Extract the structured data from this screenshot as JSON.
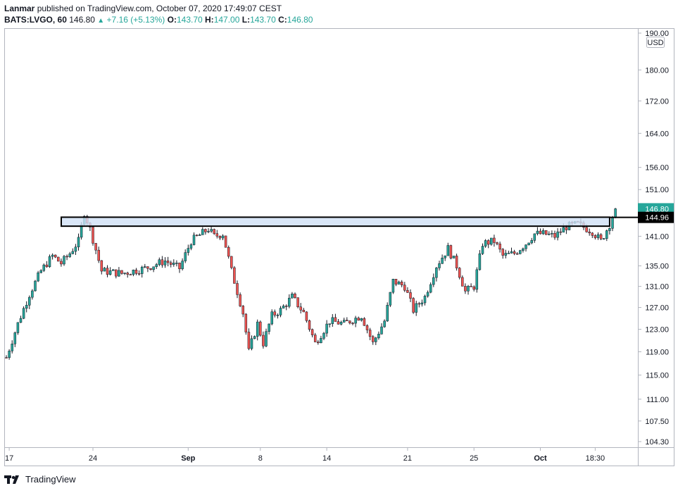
{
  "header": {
    "author": "Lanmar",
    "published_text": "published on TradingView.com, October 07, 2020 17:49:07 CEST",
    "symbol": "BATS:LVGO, 60",
    "last": "146.80",
    "change": "+7.16 (+5.13%)",
    "o_label": "O:",
    "o_value": "143.70",
    "h_label": "H:",
    "h_value": "147.00",
    "l_label": "L:",
    "l_value": "143.70",
    "c_label": "C:",
    "c_value": "146.80"
  },
  "currency": "USD",
  "footer": {
    "brand": "TradingView"
  },
  "colors": {
    "up": "#26a69a",
    "down": "#ef5350",
    "zone_fill": "#cfe0f5",
    "label_green": "#26a69a",
    "label_dark": "#000000"
  },
  "chart_data": {
    "type": "candlestick",
    "y_ticks": [
      "190.00",
      "180.00",
      "172.00",
      "164.00",
      "156.00",
      "151.00",
      "141.00",
      "135.00",
      "131.00",
      "127.00",
      "123.00",
      "119.00",
      "115.00",
      "111.00",
      "107.50",
      "104.30"
    ],
    "y_tick_values": [
      190.0,
      180.0,
      172.0,
      164.0,
      156.0,
      151.0,
      141.0,
      135.0,
      131.0,
      127.0,
      123.0,
      119.0,
      115.0,
      111.0,
      107.5,
      104.3
    ],
    "y_scale": "log",
    "ylim": [
      103.5,
      191.0
    ],
    "x_ticks": [
      "17",
      "24",
      "Sep",
      "8",
      "14",
      "21",
      "25",
      "Oct",
      "18:30"
    ],
    "x_tick_index": [
      1,
      30,
      63,
      88,
      111,
      139,
      162,
      185,
      204
    ],
    "bar_count": 212,
    "price_labels": [
      {
        "text": "146.80",
        "value": 146.8,
        "style": "green"
      },
      {
        "text": "144.96",
        "value": 144.96,
        "style": "dark"
      }
    ],
    "resistance_zone": {
      "top": 145.0,
      "bottom": 143.1,
      "start_index": 20,
      "end_index": 209
    },
    "key_points": [
      {
        "i": 0,
        "price": 118.0
      },
      {
        "i": 4,
        "price": 124.0
      },
      {
        "i": 8,
        "price": 129.5
      },
      {
        "i": 12,
        "price": 134.0
      },
      {
        "i": 16,
        "price": 137.0
      },
      {
        "i": 19,
        "price": 135.5
      },
      {
        "i": 22,
        "price": 137.5
      },
      {
        "i": 25,
        "price": 140.0
      },
      {
        "i": 27,
        "price": 146.0
      },
      {
        "i": 29,
        "price": 142.5
      },
      {
        "i": 33,
        "price": 134.0
      },
      {
        "i": 40,
        "price": 133.5
      },
      {
        "i": 48,
        "price": 134.5
      },
      {
        "i": 55,
        "price": 136.0
      },
      {
        "i": 60,
        "price": 134.5
      },
      {
        "i": 64,
        "price": 140.0
      },
      {
        "i": 70,
        "price": 142.5
      },
      {
        "i": 72,
        "price": 141.0
      },
      {
        "i": 75,
        "price": 141.5
      },
      {
        "i": 78,
        "price": 134.0
      },
      {
        "i": 82,
        "price": 126.0
      },
      {
        "i": 84,
        "price": 119.0
      },
      {
        "i": 87,
        "price": 124.0
      },
      {
        "i": 89,
        "price": 120.5
      },
      {
        "i": 92,
        "price": 125.5
      },
      {
        "i": 95,
        "price": 126.5
      },
      {
        "i": 99,
        "price": 129.0
      },
      {
        "i": 103,
        "price": 126.0
      },
      {
        "i": 107,
        "price": 120.5
      },
      {
        "i": 112,
        "price": 124.5
      },
      {
        "i": 117,
        "price": 124.0
      },
      {
        "i": 123,
        "price": 125.5
      },
      {
        "i": 127,
        "price": 120.5
      },
      {
        "i": 131,
        "price": 124.5
      },
      {
        "i": 134,
        "price": 132.0
      },
      {
        "i": 138,
        "price": 131.0
      },
      {
        "i": 141,
        "price": 126.5
      },
      {
        "i": 145,
        "price": 129.0
      },
      {
        "i": 149,
        "price": 135.0
      },
      {
        "i": 153,
        "price": 138.5
      },
      {
        "i": 156,
        "price": 135.0
      },
      {
        "i": 159,
        "price": 130.0
      },
      {
        "i": 162,
        "price": 131.0
      },
      {
        "i": 165,
        "price": 139.5
      },
      {
        "i": 169,
        "price": 140.0
      },
      {
        "i": 172,
        "price": 137.0
      },
      {
        "i": 176,
        "price": 137.5
      },
      {
        "i": 180,
        "price": 139.5
      },
      {
        "i": 183,
        "price": 141.5
      },
      {
        "i": 186,
        "price": 141.5
      },
      {
        "i": 190,
        "price": 141.0
      },
      {
        "i": 194,
        "price": 143.0
      },
      {
        "i": 198,
        "price": 143.5
      },
      {
        "i": 203,
        "price": 142.0
      },
      {
        "i": 206,
        "price": 140.0
      },
      {
        "i": 209,
        "price": 143.5
      },
      {
        "i": 211,
        "price": 146.8
      }
    ]
  }
}
